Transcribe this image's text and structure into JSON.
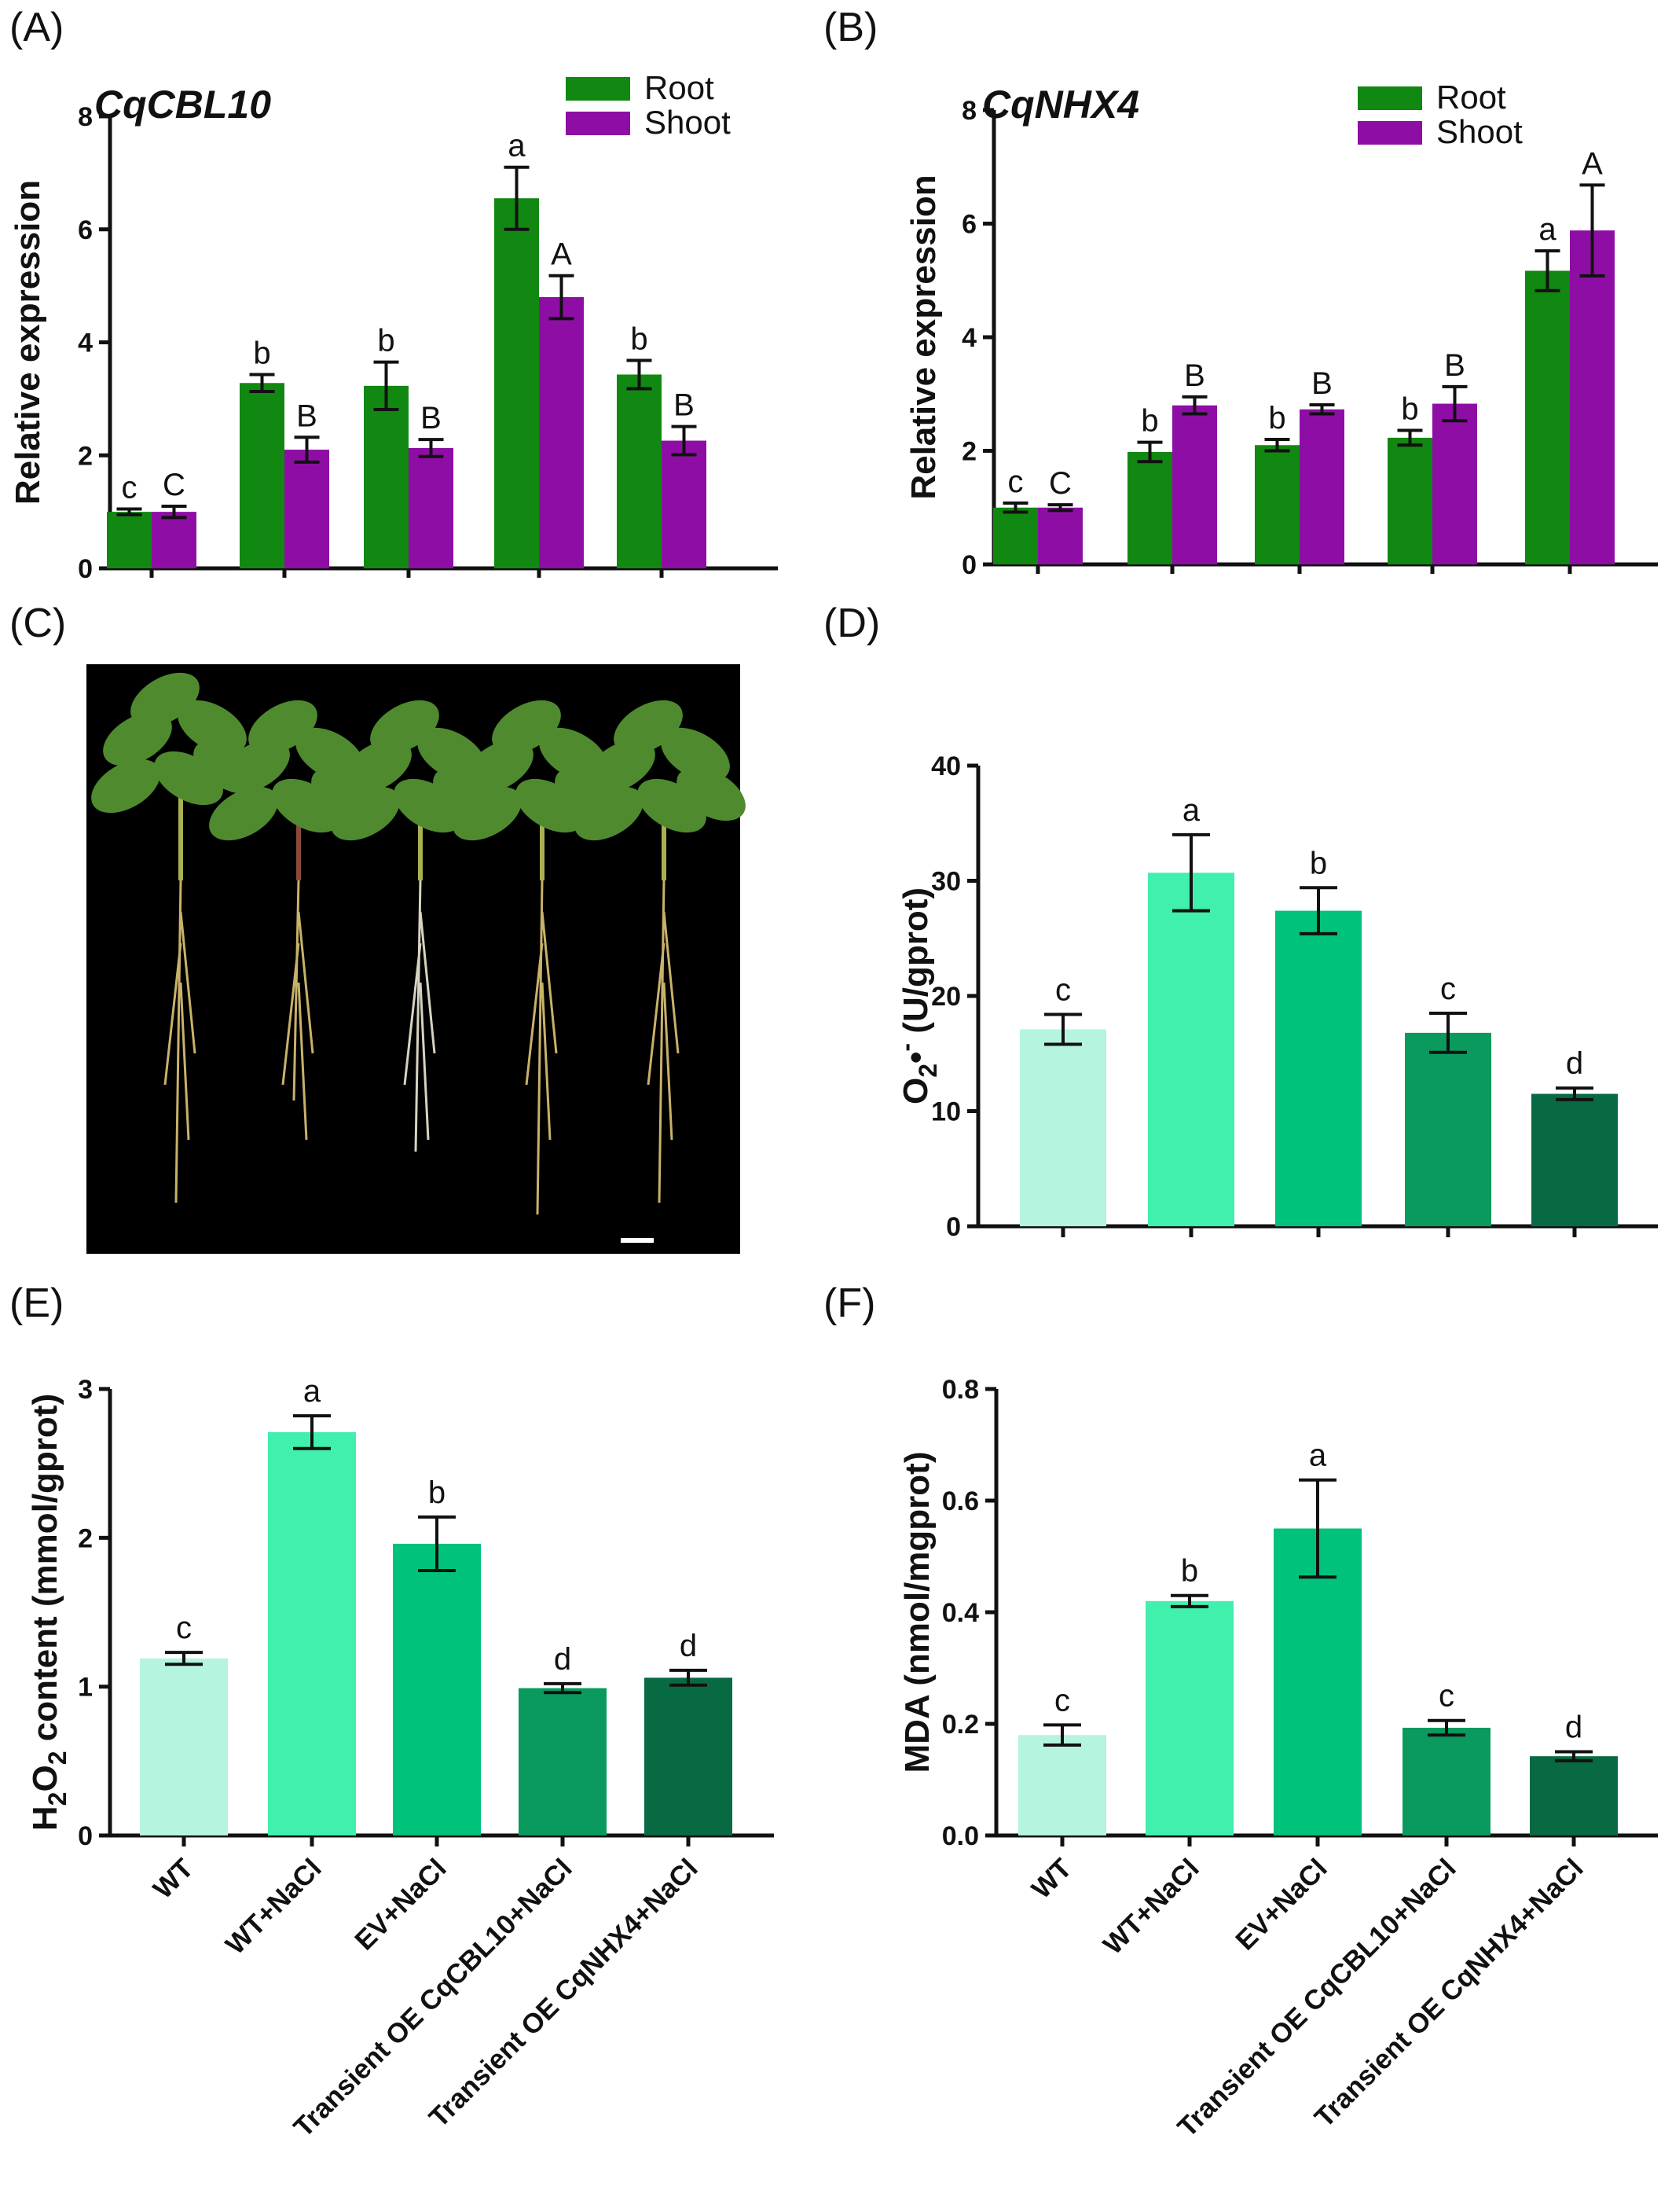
{
  "colors": {
    "root": "#118811",
    "shoot": "#8e0ea5",
    "wt": "#b5f5e0",
    "wt_nacl": "#40f0ad",
    "ev_nacl": "#00c27a",
    "oe_cbl10": "#0a9a5e",
    "oe_nhx4": "#086a42",
    "photo_bg": "#000000",
    "plant_leaf": "#4f8a2f",
    "plant_root": "#c8b26a"
  },
  "legend": {
    "root": "Root",
    "shoot": "Shoot"
  },
  "categories": [
    "WT",
    "WT+NaCl",
    "EV+NaCl",
    "Transient OE CqCBL10+NaCl",
    "Transient OE CqNHX4+NaCl"
  ],
  "panels": {
    "A": {
      "label": "(A)"
    },
    "B": {
      "label": "(B)"
    },
    "C": {
      "label": "(C)"
    },
    "D": {
      "label": "(D)"
    },
    "E": {
      "label": "(E)"
    },
    "F": {
      "label": "(F)"
    }
  },
  "chart_data": [
    {
      "id": "A",
      "type": "bar",
      "title": "CqCBL10",
      "xlabel": "",
      "ylabel": "Relative expression",
      "ylim": [
        0,
        8
      ],
      "yticks": [
        0,
        2,
        4,
        6,
        8
      ],
      "yticklabels": [
        "0",
        "2",
        "4",
        "6",
        "8"
      ],
      "legend_position": "top-right",
      "series": [
        {
          "name": "Root",
          "values": [
            1.0,
            3.28,
            3.23,
            6.55,
            3.43
          ],
          "errors": [
            0.05,
            0.15,
            0.42,
            0.55,
            0.25
          ],
          "sig": [
            "c",
            "b",
            "b",
            "a",
            "b"
          ]
        },
        {
          "name": "Shoot",
          "values": [
            1.0,
            2.1,
            2.13,
            4.8,
            2.26
          ],
          "errors": [
            0.1,
            0.22,
            0.15,
            0.38,
            0.25
          ],
          "sig": [
            "C",
            "B",
            "B",
            "A",
            "B"
          ]
        }
      ]
    },
    {
      "id": "B",
      "type": "bar",
      "title": "CqNHX4",
      "xlabel": "",
      "ylabel": "Relative expression",
      "ylim": [
        0,
        8
      ],
      "yticks": [
        0,
        2,
        4,
        6,
        8
      ],
      "yticklabels": [
        "0",
        "2",
        "4",
        "6",
        "8"
      ],
      "legend_position": "top-right",
      "series": [
        {
          "name": "Root",
          "values": [
            1.0,
            1.98,
            2.1,
            2.23,
            5.17
          ],
          "errors": [
            0.08,
            0.17,
            0.1,
            0.13,
            0.35
          ],
          "sig": [
            "c",
            "b",
            "b",
            "b",
            "a"
          ]
        },
        {
          "name": "Shoot",
          "values": [
            1.0,
            2.8,
            2.73,
            2.83,
            5.88
          ],
          "errors": [
            0.05,
            0.15,
            0.08,
            0.3,
            0.8
          ],
          "sig": [
            "C",
            "B",
            "B",
            "B",
            "A"
          ]
        }
      ]
    },
    {
      "id": "D",
      "type": "bar",
      "xlabel": "",
      "ylabel_parts": [
        "O",
        "2",
        "•",
        "-",
        " (U/gprot)"
      ],
      "ylim": [
        0,
        40
      ],
      "yticks": [
        0,
        10,
        20,
        30,
        40
      ],
      "yticklabels": [
        "0",
        "10",
        "20",
        "30",
        "40"
      ],
      "values": [
        17.1,
        30.7,
        27.4,
        16.8,
        11.5
      ],
      "errors": [
        1.3,
        3.3,
        2.0,
        1.7,
        0.5
      ],
      "sig": [
        "c",
        "a",
        "b",
        "c",
        "d"
      ]
    },
    {
      "id": "E",
      "type": "bar",
      "xlabel": "",
      "ylabel_parts": [
        "H",
        "2",
        "O",
        "2",
        " content (mmol/gprot)"
      ],
      "ylim": [
        0,
        3
      ],
      "yticks": [
        0,
        1,
        2,
        3
      ],
      "yticklabels": [
        "0",
        "1",
        "2",
        "3"
      ],
      "values": [
        1.19,
        2.71,
        1.96,
        0.99,
        1.06
      ],
      "errors": [
        0.04,
        0.11,
        0.18,
        0.03,
        0.05
      ],
      "sig": [
        "c",
        "a",
        "b",
        "d",
        "d"
      ]
    },
    {
      "id": "F",
      "type": "bar",
      "xlabel": "",
      "ylabel": "MDA (nmol/mgprot)",
      "ylim": [
        0,
        0.8
      ],
      "yticks": [
        0,
        0.2,
        0.4,
        0.6,
        0.8
      ],
      "yticklabels": [
        "0.0",
        "0.2",
        "0.4",
        "0.6",
        "0.8"
      ],
      "values": [
        0.18,
        0.42,
        0.55,
        0.193,
        0.142
      ],
      "errors": [
        0.018,
        0.01,
        0.087,
        0.013,
        0.008
      ],
      "sig": [
        "c",
        "b",
        "a",
        "c",
        "d"
      ]
    }
  ]
}
